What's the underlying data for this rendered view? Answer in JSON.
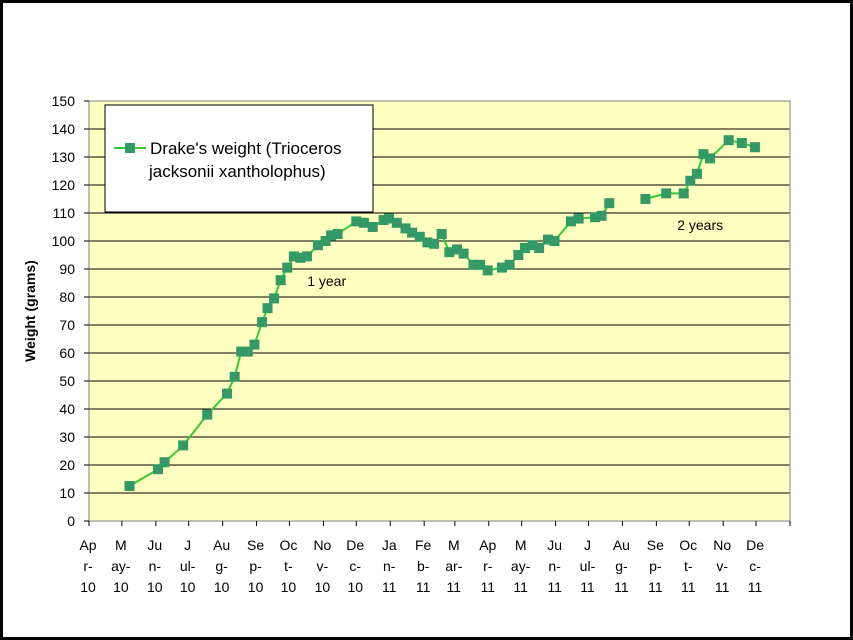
{
  "chart_data": {
    "type": "line",
    "title": "",
    "xlabel": "",
    "ylabel": "Weight (grams)",
    "ylim": [
      0,
      150
    ],
    "yticks": [
      0,
      10,
      20,
      30,
      40,
      50,
      60,
      70,
      80,
      90,
      100,
      110,
      120,
      130,
      140,
      150
    ],
    "x_tick_labels": [
      [
        "Ap",
        "r-",
        "10"
      ],
      [
        "M",
        "ay-",
        "10"
      ],
      [
        "Ju",
        "n-",
        "10"
      ],
      [
        "J",
        "ul-",
        "10"
      ],
      [
        "Au",
        "g-",
        "10"
      ],
      [
        "Se",
        "p-",
        "10"
      ],
      [
        "Oc",
        "t-",
        "10"
      ],
      [
        "No",
        "v-",
        "10"
      ],
      [
        "De",
        "c-",
        "10"
      ],
      [
        "Ja",
        "n-",
        "11"
      ],
      [
        "Fe",
        "b-",
        "11"
      ],
      [
        "M",
        "ar-",
        "11"
      ],
      [
        "Ap",
        "r-",
        "11"
      ],
      [
        "M",
        "ay-",
        "11"
      ],
      [
        "Ju",
        "n-",
        "11"
      ],
      [
        "J",
        "ul-",
        "11"
      ],
      [
        "Au",
        "g-",
        "11"
      ],
      [
        "Se",
        "p-",
        "11"
      ],
      [
        "Oc",
        "t-",
        "11"
      ],
      [
        "No",
        "v-",
        "11"
      ],
      [
        "De",
        "c-",
        "11"
      ]
    ],
    "grid": true,
    "plot_background": "#ffffc0",
    "legend_placement": "top-left",
    "annotations": [
      {
        "text": "1 year",
        "x": "2010-11-04",
        "y": 84
      },
      {
        "text": "2 years",
        "x": "2011-10-11",
        "y": 104
      }
    ],
    "series": [
      {
        "name": "Drake's weight (Trioceros jacksonii xantholophus)",
        "color": "#339966",
        "line_color": "#33cc33",
        "marker": "square",
        "segments": [
          [
            {
              "x": "2010-05-08",
              "y": 12.5
            },
            {
              "x": "2010-06-03",
              "y": 18.5
            },
            {
              "x": "2010-06-09",
              "y": 21
            },
            {
              "x": "2010-06-26",
              "y": 27
            },
            {
              "x": "2010-07-18",
              "y": 38
            },
            {
              "x": "2010-08-05",
              "y": 45.5
            },
            {
              "x": "2010-08-12",
              "y": 51.5
            },
            {
              "x": "2010-08-18",
              "y": 60.5
            },
            {
              "x": "2010-08-24",
              "y": 60.5
            },
            {
              "x": "2010-08-30",
              "y": 63
            },
            {
              "x": "2010-09-06",
              "y": 71
            },
            {
              "x": "2010-09-11",
              "y": 76
            },
            {
              "x": "2010-09-17",
              "y": 79.5
            },
            {
              "x": "2010-09-23",
              "y": 86
            },
            {
              "x": "2010-09-29",
              "y": 90.5
            },
            {
              "x": "2010-10-05",
              "y": 94.5
            },
            {
              "x": "2010-10-11",
              "y": 94
            },
            {
              "x": "2010-10-17",
              "y": 94.5
            },
            {
              "x": "2010-10-27",
              "y": 98.5
            },
            {
              "x": "2010-11-03",
              "y": 100
            },
            {
              "x": "2010-11-08",
              "y": 102
            },
            {
              "x": "2010-11-14",
              "y": 102.5
            },
            {
              "x": "2010-12-01",
              "y": 107
            },
            {
              "x": "2010-12-08",
              "y": 106.5
            },
            {
              "x": "2010-12-16",
              "y": 105
            },
            {
              "x": "2010-12-26",
              "y": 107.5
            },
            {
              "x": "2010-12-31",
              "y": 108
            },
            {
              "x": "2011-01-07",
              "y": 106.5
            },
            {
              "x": "2011-01-15",
              "y": 104.5
            },
            {
              "x": "2011-01-21",
              "y": 103
            },
            {
              "x": "2011-01-28",
              "y": 101.5
            },
            {
              "x": "2011-02-04",
              "y": 99.5
            },
            {
              "x": "2011-02-10",
              "y": 99
            },
            {
              "x": "2011-02-17",
              "y": 102.5
            },
            {
              "x": "2011-02-24",
              "y": 96
            },
            {
              "x": "2011-03-03",
              "y": 97
            },
            {
              "x": "2011-03-09",
              "y": 95.5
            },
            {
              "x": "2011-03-18",
              "y": 91.5
            },
            {
              "x": "2011-03-24",
              "y": 91.5
            },
            {
              "x": "2011-03-31",
              "y": 89.5
            },
            {
              "x": "2011-04-13",
              "y": 90.5
            },
            {
              "x": "2011-04-20",
              "y": 91.5
            },
            {
              "x": "2011-04-28",
              "y": 95
            },
            {
              "x": "2011-05-04",
              "y": 97.5
            },
            {
              "x": "2011-05-11",
              "y": 98.5
            },
            {
              "x": "2011-05-17",
              "y": 97.5
            },
            {
              "x": "2011-05-25",
              "y": 100.5
            },
            {
              "x": "2011-05-31",
              "y": 100
            },
            {
              "x": "2011-06-15",
              "y": 107
            },
            {
              "x": "2011-06-22",
              "y": 108
            },
            {
              "x": "2011-07-07",
              "y": 108.5
            },
            {
              "x": "2011-07-13",
              "y": 109
            },
            {
              "x": "2011-07-20",
              "y": 113.5
            }
          ],
          [
            {
              "x": "2011-08-22",
              "y": 115
            },
            {
              "x": "2011-09-10",
              "y": 117
            },
            {
              "x": "2011-09-26",
              "y": 117
            },
            {
              "x": "2011-10-02",
              "y": 121.5
            },
            {
              "x": "2011-10-08",
              "y": 124
            },
            {
              "x": "2011-10-14",
              "y": 131
            },
            {
              "x": "2011-10-20",
              "y": 129.5
            },
            {
              "x": "2011-11-06",
              "y": 136
            },
            {
              "x": "2011-11-18",
              "y": 135
            },
            {
              "x": "2011-11-30",
              "y": 133.5
            }
          ]
        ]
      }
    ]
  }
}
